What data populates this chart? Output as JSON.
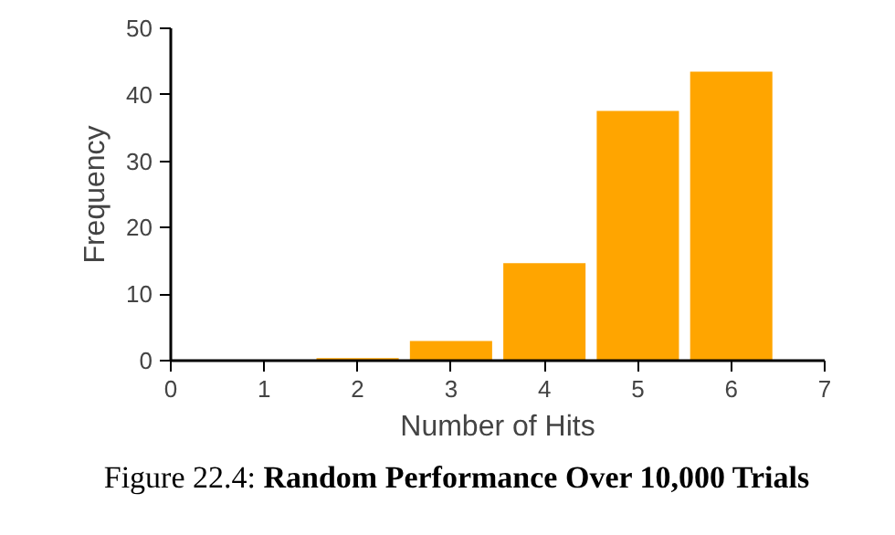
{
  "chart_data": {
    "type": "bar",
    "title": "Random Performance Over 10,000 Trials",
    "annotations": [
      "Figure 22.4:"
    ],
    "xlabel": "Number of Hits",
    "ylabel": "Frequency",
    "x": [
      2,
      3,
      4,
      5,
      6
    ],
    "values": [
      0.5,
      3.1,
      14.8,
      37.7,
      43.6
    ],
    "color": "#ffa500",
    "xlim": [
      0,
      7
    ],
    "xticks": [
      0,
      1,
      2,
      3,
      4,
      5,
      6,
      7
    ],
    "ylim": [
      0,
      50
    ],
    "yticks": [
      0,
      10,
      20,
      30,
      40,
      50
    ],
    "grid": false
  }
}
